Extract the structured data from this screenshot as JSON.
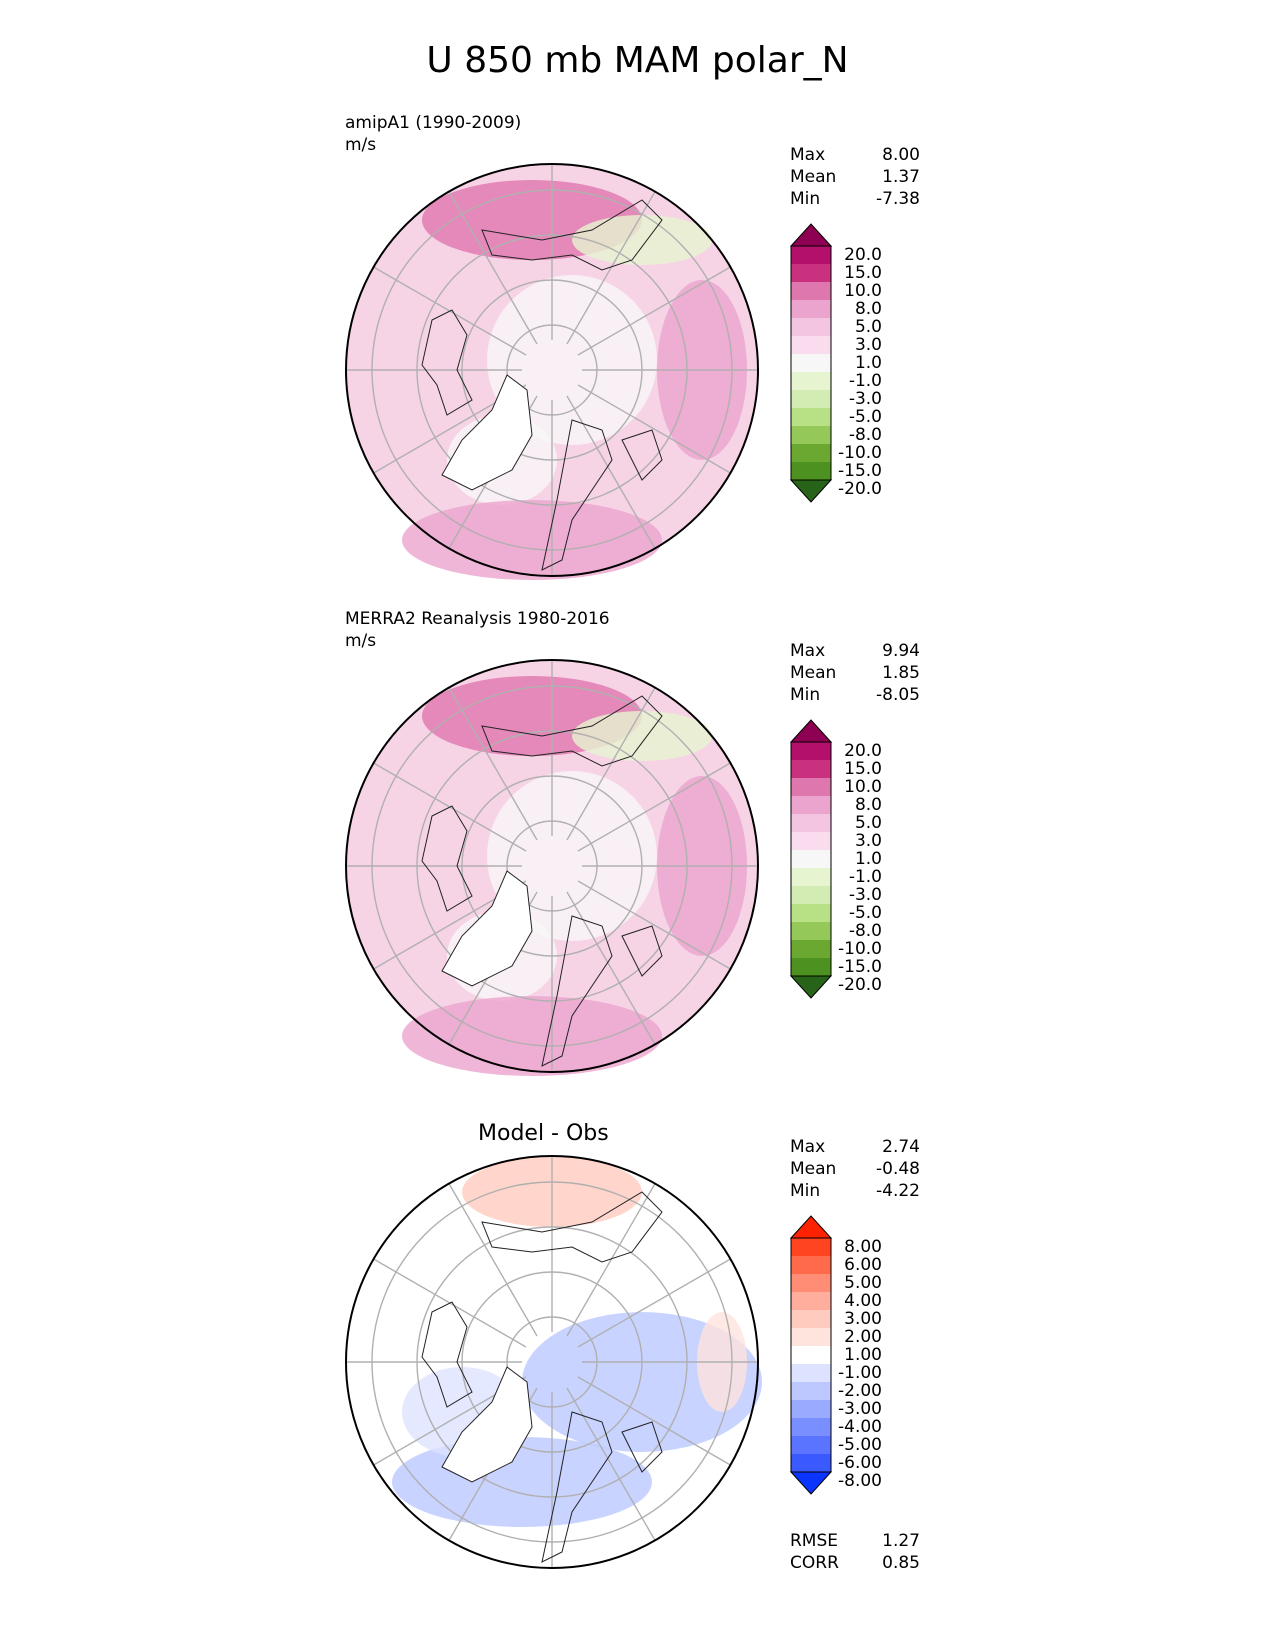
{
  "figure": {
    "title": "U 850 mb MAM polar_N"
  },
  "panels": [
    {
      "id": "model",
      "label_line1": "amipA1 (1990-2009)",
      "label_line2": "m/s",
      "center_title": "",
      "stats": [
        {
          "name": "Max",
          "value": "8.00"
        },
        {
          "name": "Mean",
          "value": "1.37"
        },
        {
          "name": "Min",
          "value": "-7.38"
        }
      ],
      "colorbar": {
        "levels": [
          "20.0",
          "15.0",
          "10.0",
          "8.0",
          "5.0",
          "3.0",
          "1.0",
          "-1.0",
          "-3.0",
          "-5.0",
          "-8.0",
          "-10.0",
          "-15.0",
          "-20.0"
        ],
        "colors": [
          "#8e0152",
          "#b3106b",
          "#c9317f",
          "#de77ae",
          "#eba4cd",
          "#f4c5e0",
          "#f9dced",
          "#f7f7f7",
          "#e6f5d0",
          "#d3ecb3",
          "#b8e186",
          "#94c95a",
          "#6ba832",
          "#4d9221",
          "#276419"
        ]
      },
      "bg_color": "#f7d3e6"
    },
    {
      "id": "obs",
      "label_line1": "MERRA2 Reanalysis 1980-2016",
      "label_line2": "m/s",
      "center_title": "",
      "stats": [
        {
          "name": "Max",
          "value": "9.94"
        },
        {
          "name": "Mean",
          "value": "1.85"
        },
        {
          "name": "Min",
          "value": "-8.05"
        }
      ],
      "colorbar": {
        "levels": [
          "20.0",
          "15.0",
          "10.0",
          "8.0",
          "5.0",
          "3.0",
          "1.0",
          "-1.0",
          "-3.0",
          "-5.0",
          "-8.0",
          "-10.0",
          "-15.0",
          "-20.0"
        ],
        "colors": [
          "#8e0152",
          "#b3106b",
          "#c9317f",
          "#de77ae",
          "#eba4cd",
          "#f4c5e0",
          "#f9dced",
          "#f7f7f7",
          "#e6f5d0",
          "#d3ecb3",
          "#b8e186",
          "#94c95a",
          "#6ba832",
          "#4d9221",
          "#276419"
        ]
      },
      "bg_color": "#f7d3e6"
    },
    {
      "id": "diff",
      "label_line1": "",
      "label_line2": "",
      "center_title": "Model - Obs",
      "stats": [
        {
          "name": "Max",
          "value": "2.74"
        },
        {
          "name": "Mean",
          "value": "-0.48"
        },
        {
          "name": "Min",
          "value": "-4.22"
        }
      ],
      "colorbar": {
        "levels": [
          "8.00",
          "6.00",
          "5.00",
          "4.00",
          "3.00",
          "2.00",
          "1.00",
          "-1.00",
          "-2.00",
          "-3.00",
          "-4.00",
          "-5.00",
          "-6.00",
          "-8.00"
        ],
        "colors": [
          "#ff2200",
          "#ff4422",
          "#ff6a4a",
          "#ff8c75",
          "#ffad9c",
          "#ffcbbf",
          "#ffe3dd",
          "#ffffff",
          "#dde3ff",
          "#bcc8ff",
          "#9aabff",
          "#7a8fff",
          "#5a74ff",
          "#3a59ff",
          "#0b35ff"
        ]
      },
      "bg_color": "#ffffff",
      "extra_stats": [
        {
          "name": "RMSE",
          "value": "1.27"
        },
        {
          "name": "CORR",
          "value": "0.85"
        }
      ]
    }
  ]
}
